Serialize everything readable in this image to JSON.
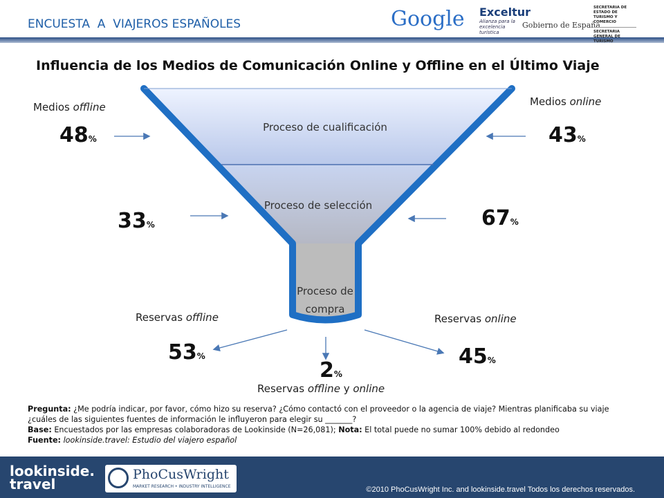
{
  "header": {
    "title": "ENCUESTA  A  VIAJEROS ESPAÑOLES",
    "logos": [
      "Google",
      "Exceltur",
      "Alianza para la excelencia turística",
      "Gobierno de España",
      "SECRETARIA DE ESTADO DE TURISMO Y COMERCIO",
      "SECRETARIA GENERAL DE TURISMO"
    ]
  },
  "title": "Influencia de los Medios de Comunicación Online y Offline en el Último Viaje",
  "unit": "%",
  "columns": {
    "left": [
      "Medios ",
      "offline"
    ],
    "right": [
      "Medios ",
      "online"
    ]
  },
  "stages": [
    {
      "label": "Proceso de cualificación",
      "offline": 48,
      "online": 43
    },
    {
      "label": "Proceso de selección",
      "offline": 33,
      "online": 67
    },
    {
      "label": [
        "Proceso de",
        "compra"
      ]
    }
  ],
  "bookings": {
    "offline": {
      "label": [
        "Reservas ",
        "offline"
      ],
      "value": 53
    },
    "both": {
      "label": [
        "Reservas ",
        "offline",
        " y ",
        "online"
      ],
      "value": 2
    },
    "online": {
      "label": [
        "Reservas ",
        "online"
      ],
      "value": 45
    }
  },
  "notes": [
    [
      "Pregunta:",
      " ¿Me podría indicar, por favor, cómo hizo su reserva? ¿Cómo contactó con el proveedor o la agencia de viaje? Mientras planificaba su viaje ¿cuáles de las siguientes fuentes de información le influyeron para  elegir su _______?"
    ],
    [
      "Base:",
      " Encuestados por las empresas colaboradoras de Lookinside (N=26,081); ",
      "Nota:",
      " El total puede no sumar 100% debido al redondeo"
    ],
    [
      "Fuente:",
      " ",
      "lookinside.travel: Estudio del viajero español"
    ]
  ],
  "footer": {
    "logo1": [
      "lookinside.",
      "travel"
    ],
    "logo2": "PhoCusWright",
    "logo2_sub": "MARKET RESEARCH • INDUSTRY INTELLIGENCE",
    "copyright": "©2010 PhoCusWright Inc. and lookinside.travel Todos los derechos reservados."
  }
}
